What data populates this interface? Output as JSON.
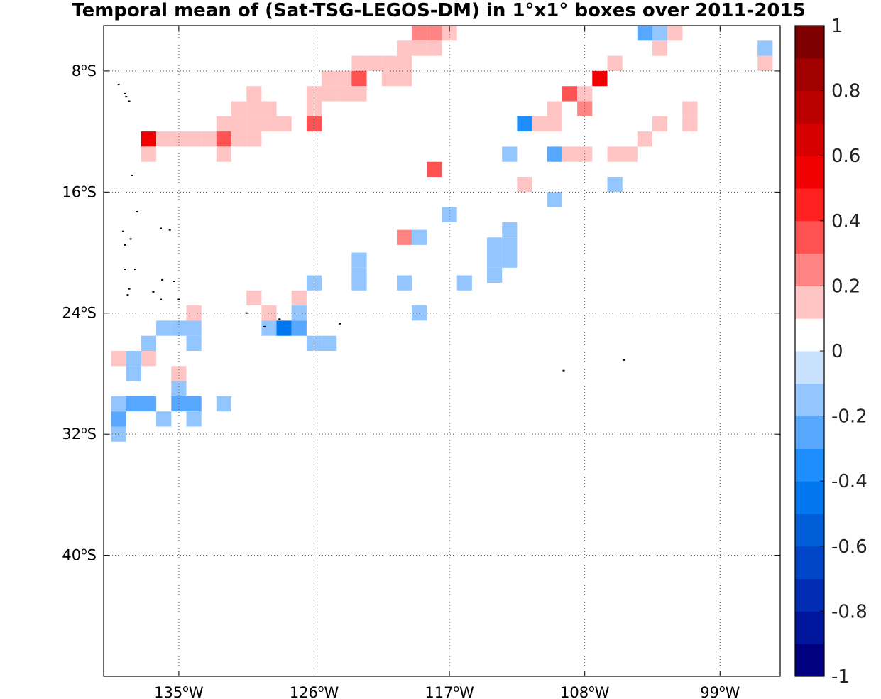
{
  "chart_data": {
    "type": "heatmap",
    "title": "Temporal mean of (Sat-TSG-LEGOS-DM) in 1°x1° boxes over 2011-2015",
    "xlabel": "",
    "ylabel": "",
    "xlim": [
      -140,
      -95
    ],
    "ylim": [
      -48,
      -5
    ],
    "grid": true,
    "x_ticks": [
      {
        "value": -135,
        "label": "135",
        "sup": "o",
        "suffix": "W"
      },
      {
        "value": -126,
        "label": "126",
        "sup": "o",
        "suffix": "W"
      },
      {
        "value": -117,
        "label": "117",
        "sup": "o",
        "suffix": "W"
      },
      {
        "value": -108,
        "label": "108",
        "sup": "o",
        "suffix": "W"
      },
      {
        "value": -99,
        "label": "99",
        "sup": "o",
        "suffix": "W"
      }
    ],
    "y_ticks": [
      {
        "value": -8,
        "label": "8",
        "sup": "o",
        "suffix": "S"
      },
      {
        "value": -16,
        "label": "16",
        "sup": "o",
        "suffix": "S"
      },
      {
        "value": -24,
        "label": "24",
        "sup": "o",
        "suffix": "S"
      },
      {
        "value": -32,
        "label": "32",
        "sup": "o",
        "suffix": "S"
      },
      {
        "value": -40,
        "label": "40",
        "sup": "o",
        "suffix": "S"
      }
    ],
    "colorbar": {
      "vmin": -1,
      "vmax": 1,
      "levels": [
        "#000080",
        "#00169c",
        "#002db3",
        "#0045c8",
        "#005ed9",
        "#0077ee",
        "#1e8eff",
        "#59a8ff",
        "#93c6ff",
        "#c9e1fc",
        "#ffffff",
        "#ffc4c4",
        "#ff8585",
        "#ff5252",
        "#ff2020",
        "#f00000",
        "#d70000",
        "#bb0000",
        "#a10000",
        "#7f0000"
      ],
      "tick_labels": [
        "1",
        "0.8",
        "0.6",
        "0.4",
        "0.2",
        "0",
        "-0.2",
        "-0.4",
        "-0.6",
        "-0.8",
        "-1"
      ]
    },
    "cells": [
      {
        "lon": -119.0,
        "lat": -5.5,
        "value": 0.25
      },
      {
        "lon": -118.0,
        "lat": -5.5,
        "value": 0.25
      },
      {
        "lon": -117.0,
        "lat": -5.5,
        "value": 0.15
      },
      {
        "lon": -104.0,
        "lat": -5.5,
        "value": -0.3
      },
      {
        "lon": -103.0,
        "lat": -5.5,
        "value": -0.15
      },
      {
        "lon": -102.0,
        "lat": -5.5,
        "value": 0.15
      },
      {
        "lon": -120.0,
        "lat": -6.5,
        "value": 0.15
      },
      {
        "lon": -119.0,
        "lat": -6.5,
        "value": 0.15
      },
      {
        "lon": -118.0,
        "lat": -6.5,
        "value": 0.15
      },
      {
        "lon": -103.0,
        "lat": -6.5,
        "value": 0.15
      },
      {
        "lon": -96.0,
        "lat": -6.5,
        "value": -0.15
      },
      {
        "lon": -123.0,
        "lat": -7.5,
        "value": 0.15
      },
      {
        "lon": -122.0,
        "lat": -7.5,
        "value": 0.15
      },
      {
        "lon": -121.0,
        "lat": -7.5,
        "value": 0.15
      },
      {
        "lon": -120.0,
        "lat": -7.5,
        "value": 0.15
      },
      {
        "lon": -106.0,
        "lat": -7.5,
        "value": 0.15
      },
      {
        "lon": -96.0,
        "lat": -7.5,
        "value": 0.15
      },
      {
        "lon": -121.0,
        "lat": -8.5,
        "value": 0.15
      },
      {
        "lon": -120.0,
        "lat": -8.5,
        "value": 0.15
      },
      {
        "lon": -107.0,
        "lat": -8.5,
        "value": 0.5
      },
      {
        "lon": -125.0,
        "lat": -8.5,
        "value": 0.15
      },
      {
        "lon": -124.0,
        "lat": -8.5,
        "value": 0.15
      },
      {
        "lon": -123.0,
        "lat": -8.5,
        "value": 0.35
      },
      {
        "lon": -125.0,
        "lat": -9.5,
        "value": 0.15
      },
      {
        "lon": -124.0,
        "lat": -9.5,
        "value": 0.15
      },
      {
        "lon": -123.0,
        "lat": -9.5,
        "value": 0.15
      },
      {
        "lon": -126.0,
        "lat": -9.5,
        "value": 0.15
      },
      {
        "lon": -130.0,
        "lat": -9.5,
        "value": 0.15
      },
      {
        "lon": -109.0,
        "lat": -9.5,
        "value": 0.3
      },
      {
        "lon": -108.0,
        "lat": -9.5,
        "value": 0.15
      },
      {
        "lon": -126.0,
        "lat": -10.5,
        "value": 0.15
      },
      {
        "lon": -129.0,
        "lat": -10.5,
        "value": 0.15
      },
      {
        "lon": -130.0,
        "lat": -10.5,
        "value": 0.15
      },
      {
        "lon": -131.0,
        "lat": -10.5,
        "value": 0.15
      },
      {
        "lon": -110.0,
        "lat": -10.5,
        "value": 0.15
      },
      {
        "lon": -108.0,
        "lat": -10.5,
        "value": 0.25
      },
      {
        "lon": -101.0,
        "lat": -10.5,
        "value": 0.15
      },
      {
        "lon": -132.0,
        "lat": -11.5,
        "value": 0.15
      },
      {
        "lon": -131.0,
        "lat": -11.5,
        "value": 0.15
      },
      {
        "lon": -130.0,
        "lat": -11.5,
        "value": 0.15
      },
      {
        "lon": -129.0,
        "lat": -11.5,
        "value": 0.15
      },
      {
        "lon": -128.0,
        "lat": -11.5,
        "value": 0.15
      },
      {
        "lon": -126.0,
        "lat": -11.5,
        "value": 0.3
      },
      {
        "lon": -112.0,
        "lat": -11.5,
        "value": -0.35
      },
      {
        "lon": -111.0,
        "lat": -11.5,
        "value": 0.15
      },
      {
        "lon": -110.0,
        "lat": -11.5,
        "value": 0.15
      },
      {
        "lon": -103.0,
        "lat": -11.5,
        "value": 0.15
      },
      {
        "lon": -101.0,
        "lat": -11.5,
        "value": 0.15
      },
      {
        "lon": -137.0,
        "lat": -12.5,
        "value": 0.5
      },
      {
        "lon": -136.0,
        "lat": -12.5,
        "value": 0.15
      },
      {
        "lon": -135.0,
        "lat": -12.5,
        "value": 0.15
      },
      {
        "lon": -134.0,
        "lat": -12.5,
        "value": 0.15
      },
      {
        "lon": -133.0,
        "lat": -12.5,
        "value": 0.15
      },
      {
        "lon": -132.0,
        "lat": -12.5,
        "value": 0.3
      },
      {
        "lon": -131.0,
        "lat": -12.5,
        "value": 0.15
      },
      {
        "lon": -130.0,
        "lat": -12.5,
        "value": 0.15
      },
      {
        "lon": -104.0,
        "lat": -12.5,
        "value": 0.15
      },
      {
        "lon": -105.0,
        "lat": -13.5,
        "value": 0.15
      },
      {
        "lon": -106.0,
        "lat": -13.5,
        "value": 0.15
      },
      {
        "lon": -132.0,
        "lat": -13.5,
        "value": 0.15
      },
      {
        "lon": -137.0,
        "lat": -13.5,
        "value": 0.15
      },
      {
        "lon": -110.0,
        "lat": -13.5,
        "value": -0.25
      },
      {
        "lon": -109.0,
        "lat": -13.5,
        "value": 0.15
      },
      {
        "lon": -108.0,
        "lat": -13.5,
        "value": 0.15
      },
      {
        "lon": -113.0,
        "lat": -13.5,
        "value": -0.15
      },
      {
        "lon": -118.0,
        "lat": -14.5,
        "value": 0.3
      },
      {
        "lon": -112.0,
        "lat": -15.5,
        "value": 0.15
      },
      {
        "lon": -106.0,
        "lat": -15.5,
        "value": -0.15
      },
      {
        "lon": -110.0,
        "lat": -16.5,
        "value": -0.15
      },
      {
        "lon": -117.0,
        "lat": -17.5,
        "value": -0.15
      },
      {
        "lon": -113.0,
        "lat": -18.5,
        "value": -0.15
      },
      {
        "lon": -120.0,
        "lat": -19.0,
        "value": 0.25
      },
      {
        "lon": -119.0,
        "lat": -19.0,
        "value": -0.15
      },
      {
        "lon": -113.0,
        "lat": -19.5,
        "value": -0.15
      },
      {
        "lon": -114.0,
        "lat": -19.5,
        "value": -0.15
      },
      {
        "lon": -114.0,
        "lat": -20.5,
        "value": -0.15
      },
      {
        "lon": -113.0,
        "lat": -20.5,
        "value": -0.15
      },
      {
        "lon": -123.0,
        "lat": -20.5,
        "value": -0.15
      },
      {
        "lon": -114.0,
        "lat": -21.5,
        "value": -0.15
      },
      {
        "lon": -123.0,
        "lat": -21.5,
        "value": -0.15
      },
      {
        "lon": -126.0,
        "lat": -22.0,
        "value": -0.15
      },
      {
        "lon": -120.0,
        "lat": -22.0,
        "value": -0.15
      },
      {
        "lon": -116.0,
        "lat": -22.0,
        "value": -0.15
      },
      {
        "lon": -123.0,
        "lat": -22.0,
        "value": -0.15
      },
      {
        "lon": -130.0,
        "lat": -23.0,
        "value": 0.15
      },
      {
        "lon": -127.0,
        "lat": -23.0,
        "value": 0.15
      },
      {
        "lon": -119.0,
        "lat": -24.0,
        "value": -0.15
      },
      {
        "lon": -127.0,
        "lat": -24.0,
        "value": -0.15
      },
      {
        "lon": -134.0,
        "lat": -24.0,
        "value": 0.15
      },
      {
        "lon": -129.0,
        "lat": -24.0,
        "value": 0.15
      },
      {
        "lon": -136.0,
        "lat": -25.0,
        "value": -0.15
      },
      {
        "lon": -135.0,
        "lat": -25.0,
        "value": -0.15
      },
      {
        "lon": -134.0,
        "lat": -25.0,
        "value": -0.15
      },
      {
        "lon": -129.0,
        "lat": -25.0,
        "value": -0.15
      },
      {
        "lon": -128.0,
        "lat": -25.0,
        "value": -0.45
      },
      {
        "lon": -127.0,
        "lat": -25.0,
        "value": -0.3
      },
      {
        "lon": -137.0,
        "lat": -26.0,
        "value": -0.15
      },
      {
        "lon": -134.0,
        "lat": -26.0,
        "value": -0.15
      },
      {
        "lon": -126.0,
        "lat": -26.0,
        "value": -0.15
      },
      {
        "lon": -125.0,
        "lat": -26.0,
        "value": -0.15
      },
      {
        "lon": -139.0,
        "lat": -27.0,
        "value": 0.15
      },
      {
        "lon": -138.0,
        "lat": -27.0,
        "value": -0.15
      },
      {
        "lon": -137.0,
        "lat": -27.0,
        "value": 0.15
      },
      {
        "lon": -138.0,
        "lat": -28.0,
        "value": -0.15
      },
      {
        "lon": -135.0,
        "lat": -28.0,
        "value": 0.15
      },
      {
        "lon": -135.0,
        "lat": -29.0,
        "value": -0.15
      },
      {
        "lon": -139.0,
        "lat": -30.0,
        "value": -0.15
      },
      {
        "lon": -138.0,
        "lat": -30.0,
        "value": -0.3
      },
      {
        "lon": -137.0,
        "lat": -30.0,
        "value": -0.3
      },
      {
        "lon": -135.0,
        "lat": -30.0,
        "value": -0.3
      },
      {
        "lon": -134.0,
        "lat": -30.0,
        "value": -0.3
      },
      {
        "lon": -132.0,
        "lat": -30.0,
        "value": -0.15
      },
      {
        "lon": -139.0,
        "lat": -31.0,
        "value": -0.3
      },
      {
        "lon": -136.0,
        "lat": -31.0,
        "value": -0.15
      },
      {
        "lon": -134.0,
        "lat": -31.0,
        "value": -0.15
      },
      {
        "lon": -139.0,
        "lat": -32.0,
        "value": -0.15
      }
    ],
    "islands": [
      {
        "lon": -139.0,
        "lat": -8.9
      },
      {
        "lon": -138.6,
        "lat": -9.5
      },
      {
        "lon": -138.5,
        "lat": -9.7
      },
      {
        "lon": -138.3,
        "lat": -10.0
      },
      {
        "lon": -138.1,
        "lat": -14.9
      },
      {
        "lon": -137.8,
        "lat": -17.3
      },
      {
        "lon": -138.7,
        "lat": -18.6
      },
      {
        "lon": -138.2,
        "lat": -19.1
      },
      {
        "lon": -138.6,
        "lat": -19.5
      },
      {
        "lon": -136.2,
        "lat": -18.4
      },
      {
        "lon": -135.6,
        "lat": -18.5
      },
      {
        "lon": -138.6,
        "lat": -21.1
      },
      {
        "lon": -137.9,
        "lat": -21.1
      },
      {
        "lon": -136.1,
        "lat": -21.8
      },
      {
        "lon": -135.3,
        "lat": -21.9
      },
      {
        "lon": -138.3,
        "lat": -22.4
      },
      {
        "lon": -138.4,
        "lat": -22.8
      },
      {
        "lon": -136.7,
        "lat": -22.6
      },
      {
        "lon": -135.0,
        "lat": -23.1
      },
      {
        "lon": -136.2,
        "lat": -23.1
      },
      {
        "lon": -130.5,
        "lat": -24.0
      },
      {
        "lon": -128.3,
        "lat": -24.4
      },
      {
        "lon": -129.3,
        "lat": -24.9
      },
      {
        "lon": -124.3,
        "lat": -24.7
      },
      {
        "lon": -105.4,
        "lat": -27.1
      },
      {
        "lon": -109.4,
        "lat": -27.8
      }
    ]
  }
}
